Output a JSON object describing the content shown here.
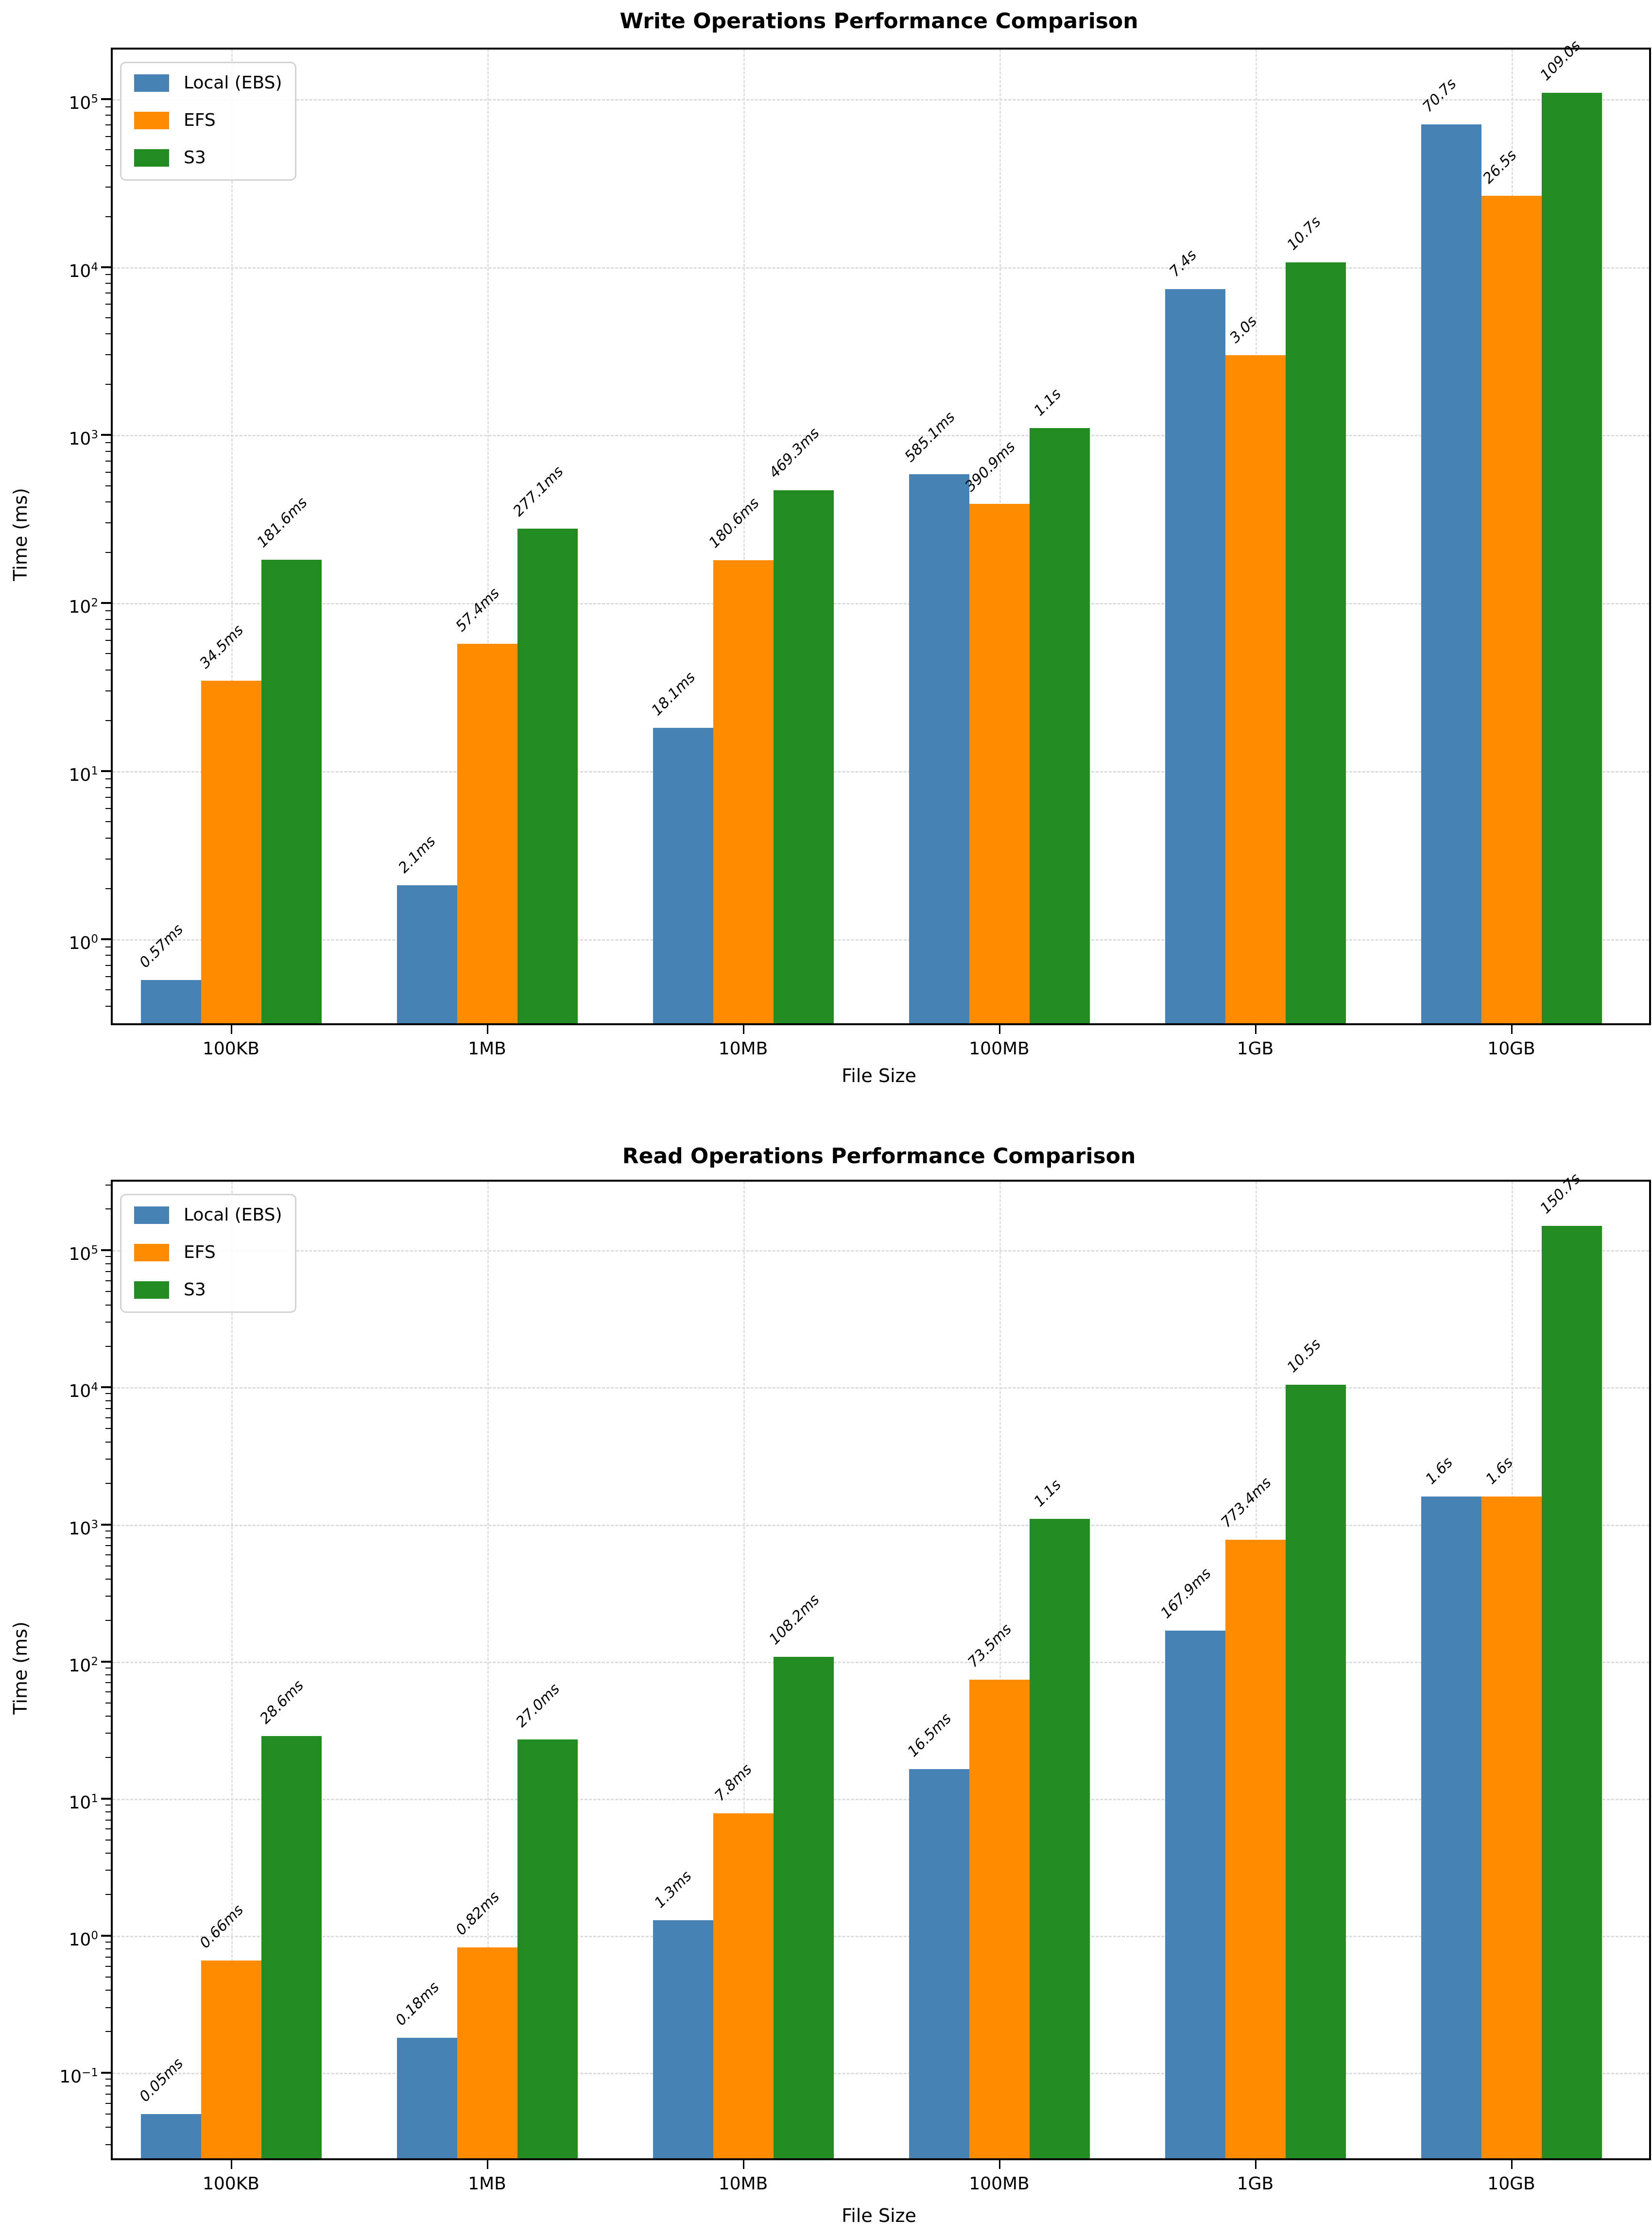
{
  "colors": {
    "local_ebs": "#4682b4",
    "efs": "#ff8c00",
    "s3": "#228b22",
    "grid": "#dcdcdc",
    "spine": "#000000",
    "background": "#ffffff"
  },
  "chart_data": [
    {
      "type": "bar",
      "title": "Write Operations Performance Comparison",
      "xlabel": "File Size",
      "ylabel": "Time (ms)",
      "yscale": "log",
      "ylim": [
        0.316,
        197000
      ],
      "ytick_exponents": [
        0,
        1,
        2,
        3,
        4,
        5
      ],
      "grid": true,
      "legend_position": "upper left",
      "categories": [
        "100KB",
        "1MB",
        "10MB",
        "100MB",
        "1GB",
        "10GB"
      ],
      "series": [
        {
          "name": "Local (EBS)",
          "color_key": "local_ebs",
          "values_ms": [
            0.57,
            2.1,
            18.1,
            585.1,
            7400,
            70700
          ],
          "labels": [
            "0.57ms",
            "2.1ms",
            "18.1ms",
            "585.1ms",
            "7.4s",
            "70.7s"
          ]
        },
        {
          "name": "EFS",
          "color_key": "efs",
          "values_ms": [
            34.5,
            57.4,
            180.6,
            390.9,
            3000,
            26500
          ],
          "labels": [
            "34.5ms",
            "57.4ms",
            "180.6ms",
            "390.9ms",
            "3.0s",
            "26.5s"
          ]
        },
        {
          "name": "S3",
          "color_key": "s3",
          "values_ms": [
            181.6,
            277.1,
            469.3,
            1100,
            10700,
            109000
          ],
          "labels": [
            "181.6ms",
            "277.1ms",
            "469.3ms",
            "1.1s",
            "10.7s",
            "109.0s"
          ]
        }
      ]
    },
    {
      "type": "bar",
      "title": "Read Operations Performance Comparison",
      "xlabel": "File Size",
      "ylabel": "Time (ms)",
      "yscale": "log",
      "ylim": [
        0.0238,
        317000
      ],
      "ytick_exponents": [
        -1,
        0,
        1,
        2,
        3,
        4,
        5
      ],
      "grid": true,
      "legend_position": "upper left",
      "categories": [
        "100KB",
        "1MB",
        "10MB",
        "100MB",
        "1GB",
        "10GB"
      ],
      "series": [
        {
          "name": "Local (EBS)",
          "color_key": "local_ebs",
          "values_ms": [
            0.05,
            0.18,
            1.3,
            16.5,
            167.9,
            1600
          ],
          "labels": [
            "0.05ms",
            "0.18ms",
            "1.3ms",
            "16.5ms",
            "167.9ms",
            "1.6s"
          ]
        },
        {
          "name": "EFS",
          "color_key": "efs",
          "values_ms": [
            0.66,
            0.82,
            7.8,
            73.5,
            773.4,
            1600
          ],
          "labels": [
            "0.66ms",
            "0.82ms",
            "7.8ms",
            "73.5ms",
            "773.4ms",
            "1.6s"
          ]
        },
        {
          "name": "S3",
          "color_key": "s3",
          "values_ms": [
            28.6,
            27.0,
            108.2,
            1100,
            10500,
            150700
          ],
          "labels": [
            "28.6ms",
            "27.0ms",
            "108.2ms",
            "1.1s",
            "10.5s",
            "150.7s"
          ]
        }
      ]
    }
  ]
}
